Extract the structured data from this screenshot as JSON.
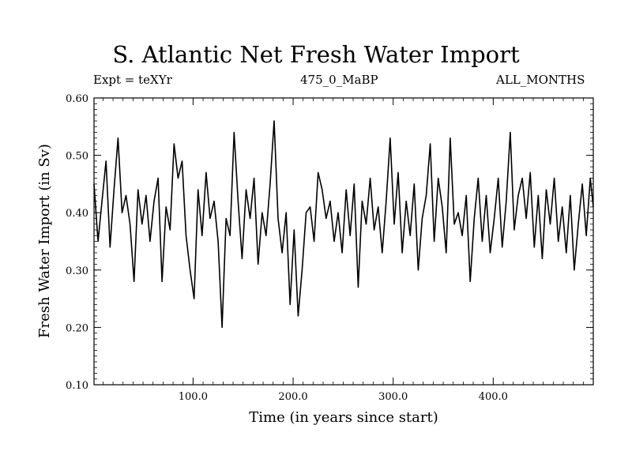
{
  "header": {
    "title": "S. Atlantic Net Fresh Water Import",
    "experiment": "Expt = teXYr",
    "case": "475_0_MaBP",
    "period": "ALL_MONTHS"
  },
  "chart_data": {
    "type": "line",
    "title": "S. Atlantic Net Fresh Water Import",
    "xlabel": "Time (in years since start)",
    "ylabel": "Fresh Water Import (in Sv)",
    "xlim": [
      1,
      500
    ],
    "ylim": [
      0.1,
      0.6
    ],
    "x_ticks": [
      100,
      200,
      300,
      400
    ],
    "x_tick_labels": [
      "100.0",
      "200.0",
      "300.0",
      "400.0"
    ],
    "y_ticks": [
      0.1,
      0.2,
      0.3,
      0.4,
      0.5,
      0.6
    ],
    "y_tick_labels": [
      "0.10",
      "0.20",
      "0.30",
      "0.40",
      "0.50",
      "0.60"
    ],
    "grid": false,
    "series": [
      {
        "x": [
          1,
          5,
          9,
          13,
          17,
          21,
          25,
          29,
          33,
          37,
          41,
          45,
          49,
          53,
          57,
          61,
          65,
          69,
          73,
          77,
          81,
          85,
          89,
          93,
          97,
          101,
          105,
          109,
          113,
          117,
          121,
          125,
          129,
          133,
          137,
          141,
          145,
          149,
          153,
          157,
          161,
          165,
          169,
          173,
          177,
          181,
          185,
          189,
          193,
          197,
          201,
          205,
          209,
          213,
          217,
          221,
          225,
          229,
          233,
          237,
          241,
          245,
          249,
          253,
          257,
          261,
          265,
          269,
          273,
          277,
          281,
          285,
          289,
          293,
          297,
          301,
          305,
          309,
          313,
          317,
          321,
          325,
          329,
          333,
          337,
          341,
          345,
          349,
          353,
          357,
          361,
          365,
          369,
          373,
          377,
          381,
          385,
          389,
          393,
          397,
          401,
          405,
          409,
          413,
          417,
          421,
          425,
          429,
          433,
          437,
          441,
          445,
          449,
          453,
          457,
          461,
          465,
          469,
          473,
          477,
          481,
          485,
          489,
          493,
          497,
          500
        ],
        "y": [
          0.45,
          0.35,
          0.42,
          0.49,
          0.34,
          0.44,
          0.53,
          0.4,
          0.43,
          0.38,
          0.28,
          0.44,
          0.38,
          0.43,
          0.35,
          0.42,
          0.46,
          0.28,
          0.41,
          0.37,
          0.52,
          0.46,
          0.49,
          0.36,
          0.3,
          0.25,
          0.44,
          0.36,
          0.47,
          0.39,
          0.42,
          0.35,
          0.2,
          0.39,
          0.36,
          0.54,
          0.42,
          0.32,
          0.44,
          0.39,
          0.46,
          0.31,
          0.4,
          0.36,
          0.45,
          0.56,
          0.39,
          0.33,
          0.4,
          0.24,
          0.37,
          0.22,
          0.3,
          0.4,
          0.41,
          0.35,
          0.47,
          0.44,
          0.39,
          0.42,
          0.35,
          0.4,
          0.33,
          0.44,
          0.36,
          0.45,
          0.27,
          0.42,
          0.38,
          0.46,
          0.37,
          0.41,
          0.33,
          0.42,
          0.53,
          0.38,
          0.47,
          0.33,
          0.42,
          0.36,
          0.45,
          0.3,
          0.39,
          0.43,
          0.52,
          0.35,
          0.46,
          0.41,
          0.33,
          0.53,
          0.38,
          0.4,
          0.36,
          0.43,
          0.28,
          0.39,
          0.46,
          0.35,
          0.43,
          0.33,
          0.39,
          0.46,
          0.34,
          0.42,
          0.54,
          0.37,
          0.43,
          0.46,
          0.39,
          0.47,
          0.34,
          0.43,
          0.32,
          0.44,
          0.38,
          0.46,
          0.35,
          0.41,
          0.33,
          0.43,
          0.3,
          0.38,
          0.45,
          0.36,
          0.46,
          0.41
        ]
      }
    ]
  }
}
